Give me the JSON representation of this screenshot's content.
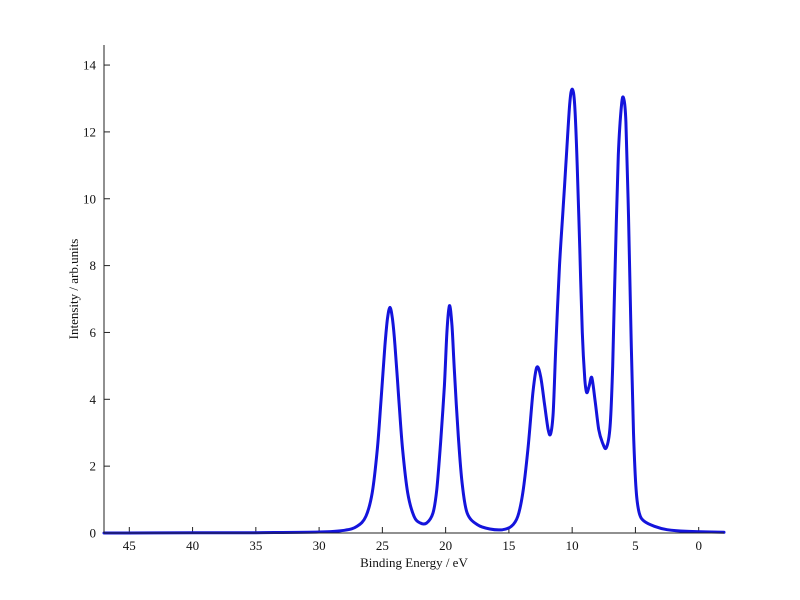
{
  "chart_data": {
    "type": "line",
    "title": "",
    "xlabel": "Binding Energy / eV",
    "ylabel": "Intensity / arb.units",
    "xlim": [
      47,
      -2
    ],
    "ylim": [
      0,
      14.6
    ],
    "x_reversed": true,
    "grid": false,
    "legend": "none",
    "x_ticks": [
      45,
      40,
      35,
      30,
      25,
      20,
      15,
      10,
      5,
      0
    ],
    "y_ticks": [
      0,
      2,
      4,
      6,
      8,
      10,
      12,
      14
    ],
    "line_color": "#1414dc",
    "series": [
      {
        "x": [
          47,
          40,
          35,
          30,
          28,
          27,
          26.3,
          25.8,
          25.4,
          25.1,
          24.8,
          24.6,
          24.4,
          24.2,
          24.0,
          23.7,
          23.4,
          23.0,
          22.5,
          22.0,
          21.5,
          21.0,
          20.7,
          20.4,
          20.1,
          19.9,
          19.7,
          19.5,
          19.3,
          19.0,
          18.7,
          18.3,
          17.5,
          16.5,
          15.5,
          14.8,
          14.3,
          13.9,
          13.5,
          13.1,
          12.8,
          12.5,
          12.2,
          11.9,
          11.7,
          11.5,
          11.3,
          11.0,
          10.7,
          10.5,
          10.2,
          10.0,
          9.8,
          9.6,
          9.4,
          9.2,
          9.0,
          8.85,
          8.65,
          8.45,
          8.2,
          7.9,
          7.6,
          7.3,
          7.0,
          6.8,
          6.6,
          6.35,
          6.1,
          5.93,
          5.75,
          5.55,
          5.35,
          5.15,
          4.95,
          4.7,
          4.3,
          3.5,
          2.5,
          1.0,
          -2
        ],
        "y": [
          0,
          0.005,
          0.01,
          0.03,
          0.08,
          0.2,
          0.5,
          1.2,
          2.5,
          4.0,
          5.6,
          6.4,
          6.75,
          6.4,
          5.6,
          4.0,
          2.5,
          1.2,
          0.5,
          0.3,
          0.3,
          0.6,
          1.3,
          2.7,
          4.4,
          6.0,
          6.8,
          6.2,
          4.8,
          2.9,
          1.5,
          0.6,
          0.25,
          0.12,
          0.1,
          0.2,
          0.5,
          1.2,
          2.5,
          4.2,
          4.95,
          4.7,
          3.9,
          3.1,
          2.97,
          3.6,
          5.5,
          8.0,
          9.8,
          11.0,
          12.8,
          13.28,
          12.8,
          11.0,
          8.5,
          6.0,
          4.6,
          4.2,
          4.4,
          4.65,
          4.0,
          3.1,
          2.7,
          2.55,
          3.2,
          5.0,
          8.0,
          11.3,
          12.8,
          13.0,
          12.3,
          9.5,
          6.0,
          3.0,
          1.3,
          0.6,
          0.35,
          0.2,
          0.1,
          0.05,
          0.02
        ]
      }
    ]
  }
}
